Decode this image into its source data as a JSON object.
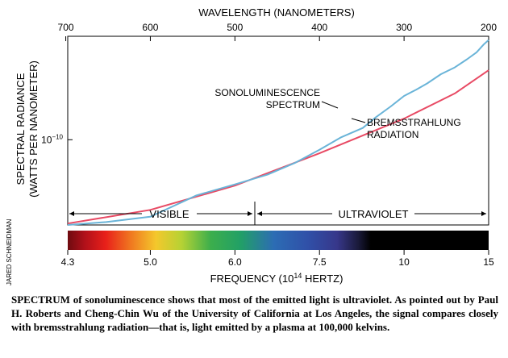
{
  "chart_data": {
    "type": "line",
    "top_axis_label": "WAVELENGTH (NANOMETERS)",
    "top_axis_ticks": [
      "700",
      "600",
      "500",
      "400",
      "300",
      "200"
    ],
    "xlabel_prefix": "FREQUENCY (10",
    "xlabel_sup": "14",
    "xlabel_suffix": " HERTZ)",
    "x_ticks": [
      "4.3",
      "5.0",
      "6.0",
      "7.5",
      "10",
      "15"
    ],
    "xlim": [
      4.3,
      15
    ],
    "x_scale": "reciprocal",
    "ylabel_line1": "SPECTRAL RADIANCE",
    "ylabel_line2": "(WATTS PER NANOMETER)",
    "y_tick_base": "10",
    "y_tick_exp": "−10",
    "y_scale": "log",
    "y_tick_value": 1e-10,
    "ylim": [
      1.5e-11,
      1e-09
    ],
    "series": [
      {
        "name": "SONOLUMINESCENCE SPECTRUM",
        "label_line1": "SONOLUMINESCENCE",
        "label_line2": "SPECTRUM",
        "color": "#6ab4d8",
        "x": [
          4.3,
          4.6,
          5.0,
          5.5,
          6.0,
          6.5,
          7.0,
          7.5,
          8.0,
          8.6,
          9.0,
          9.5,
          10.0,
          10.5,
          11.0,
          11.7,
          12.5,
          13.3,
          14.0,
          14.6,
          15.0
        ],
        "y": [
          1.5e-11,
          1.6e-11,
          1.8e-11,
          2.9e-11,
          3.7e-11,
          4.6e-11,
          6e-11,
          8e-11,
          1.05e-10,
          1.3e-10,
          1.65e-10,
          2.1e-10,
          2.65e-10,
          3.05e-10,
          3.5e-10,
          4.3e-10,
          5e-10,
          6e-10,
          7e-10,
          8.4e-10,
          9.2e-10
        ]
      },
      {
        "name": "BREMSSTRAHLUNG RADIATION",
        "label_line1": "BREMSSTRAHLUNG",
        "label_line2": "RADIATION",
        "color": "#e84a64",
        "x": [
          4.3,
          5.0,
          6.0,
          7.5,
          10.0,
          12.5,
          15.0
        ],
        "y": [
          1.55e-11,
          2.1e-11,
          3.6e-11,
          7.4e-11,
          1.6e-10,
          2.8e-10,
          4.7e-10
        ]
      }
    ],
    "regions": [
      {
        "label": "VISIBLE",
        "from": 4.3,
        "to": 7.5
      },
      {
        "label": "ULTRAVIOLET",
        "from": 7.5,
        "to": 15
      }
    ]
  },
  "credit": "JARED SCHNEIDMAN",
  "caption": "SPECTRUM of sonoluminescence shows that most of the emitted light is ultraviolet. As pointed out by Paul H. Roberts and Cheng-Chin Wu of the University of California at Los Angeles, the signal compares closely with bremsstrahlung radiation—that is, light emitted by a plasma at 100,000 kelvins."
}
